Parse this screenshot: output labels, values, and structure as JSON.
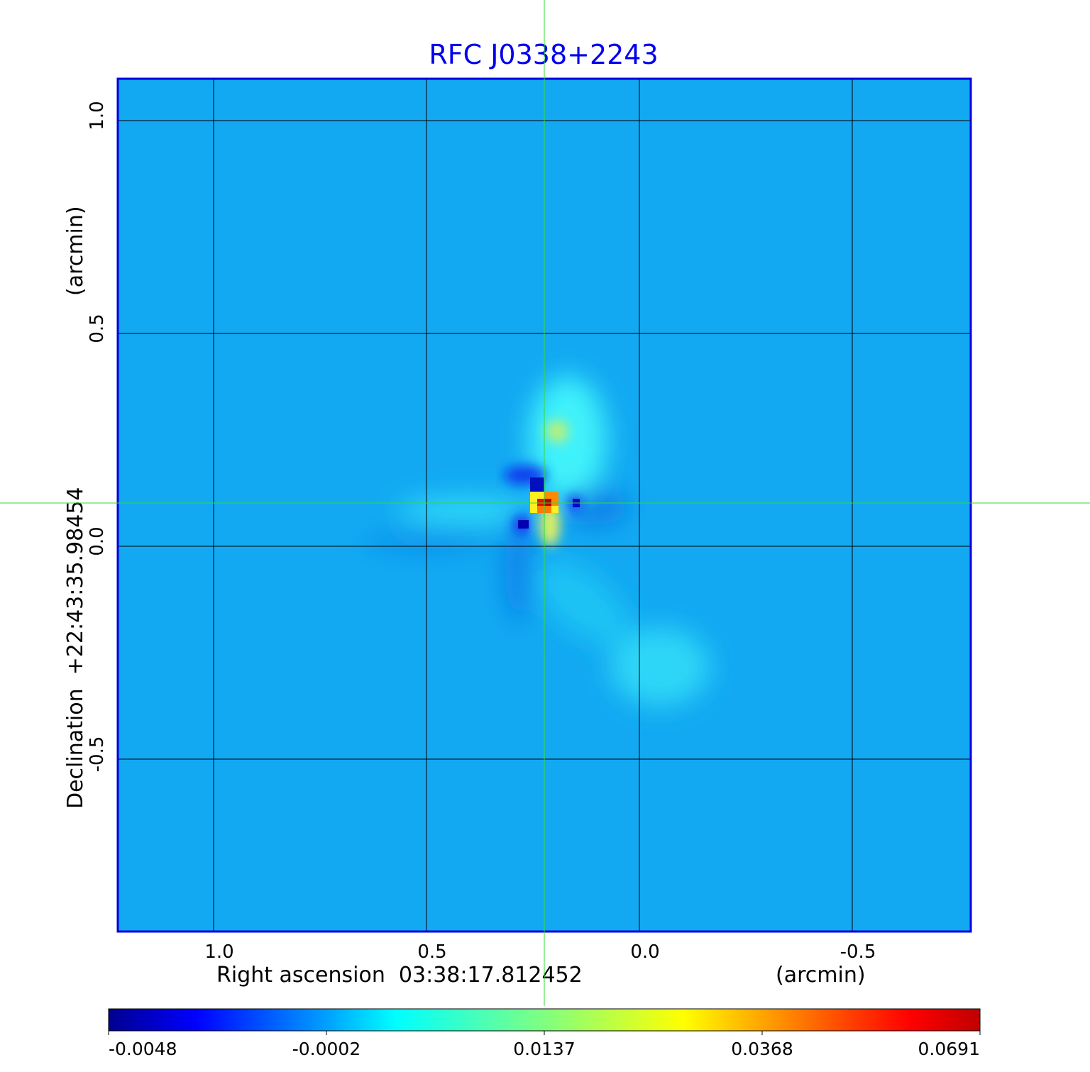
{
  "chart_data": {
    "type": "heatmap",
    "title": "RFC J0338+2243",
    "xlabel": "Right ascension  03:38:17.812452",
    "xunit": "(arcmin)",
    "ylabel": "Declination  +22:43:35.98454",
    "yunit": "(arcmin)",
    "xticks": [
      "1.0",
      "0.5",
      "0.0",
      "-0.5"
    ],
    "xtick_values": [
      1.0,
      0.5,
      0.0,
      -0.5
    ],
    "yticks": [
      "1.0",
      "0.5",
      "0.0",
      "-0.5"
    ],
    "ytick_values": [
      1.0,
      0.5,
      0.0,
      -0.5
    ],
    "xlim": [
      1.225,
      -0.78
    ],
    "ylim": [
      -0.905,
      1.098
    ],
    "grid": true,
    "crosshair": {
      "x": 0.225,
      "y": 0.1
    },
    "colormap": "jet",
    "colorbar": {
      "ticks": [
        "-0.0048",
        "-0.0002",
        "0.0137",
        "0.0368",
        "0.0691"
      ],
      "tick_values": [
        -0.0048,
        -0.0002,
        0.0137,
        0.0368,
        0.0691
      ],
      "placement": "bottom"
    },
    "peak": {
      "x": 0.225,
      "y": 0.1,
      "value": 0.0691
    }
  },
  "colors": {
    "title": "#0000ee",
    "frame": "#0000dd",
    "crosshair": "#33dd33",
    "background": "#12a9f2"
  }
}
